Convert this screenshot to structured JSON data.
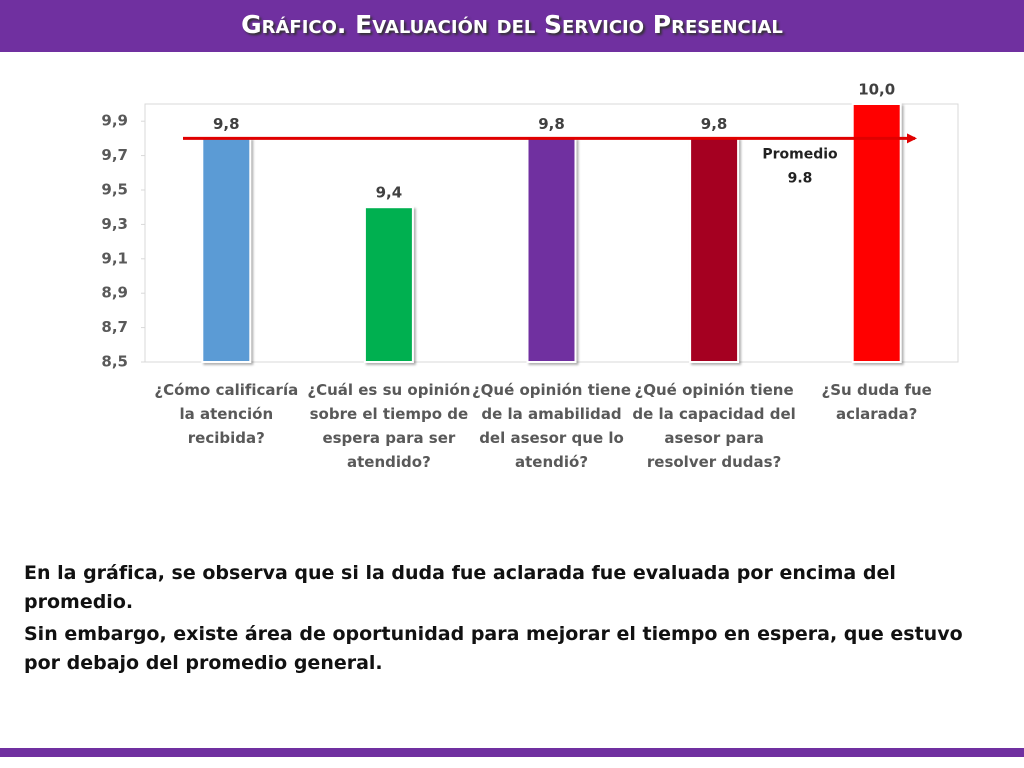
{
  "chart_data": {
    "type": "bar",
    "title": "Gráfico. Evaluación del Servicio Presencial",
    "categories": [
      "¿Cómo calificaría la atención recibida?",
      "¿Cuál es su opinión sobre el tiempo de espera para ser atendido?",
      "¿Qué opinión tiene de la amabilidad del asesor que lo atendió?",
      "¿Qué opinión tiene de la capacidad del asesor para resolver dudas?",
      "¿Su duda fue aclarada?"
    ],
    "values": [
      9.8,
      9.4,
      9.8,
      9.8,
      10.0
    ],
    "value_labels": [
      "9,8",
      "9,4",
      "9,8",
      "9,8",
      "10,0"
    ],
    "colors": [
      "#5b9bd5",
      "#00b050",
      "#7030a0",
      "#a50021",
      "#ff0000"
    ],
    "ylim": [
      8.5,
      10.0
    ],
    "yticks": [
      {
        "value": 8.5,
        "label": "8,5"
      },
      {
        "value": 8.7,
        "label": "8,7"
      },
      {
        "value": 8.9,
        "label": "8,9"
      },
      {
        "value": 9.1,
        "label": "9,1"
      },
      {
        "value": 9.3,
        "label": "9,3"
      },
      {
        "value": 9.5,
        "label": "9,5"
      },
      {
        "value": 9.7,
        "label": "9,7"
      },
      {
        "value": 9.9,
        "label": "9,9"
      }
    ],
    "grid": false,
    "average": {
      "label": "Promedio",
      "value": 9.8,
      "color": "#e00000"
    }
  },
  "text": {
    "paragraphs": [
      "En la gráfica, se observa que si la duda fue aclarada fue evaluada por encima del promedio.",
      "Sin embargo, existe área de oportunidad para mejorar el tiempo en espera, que estuvo por debajo del promedio general."
    ]
  }
}
